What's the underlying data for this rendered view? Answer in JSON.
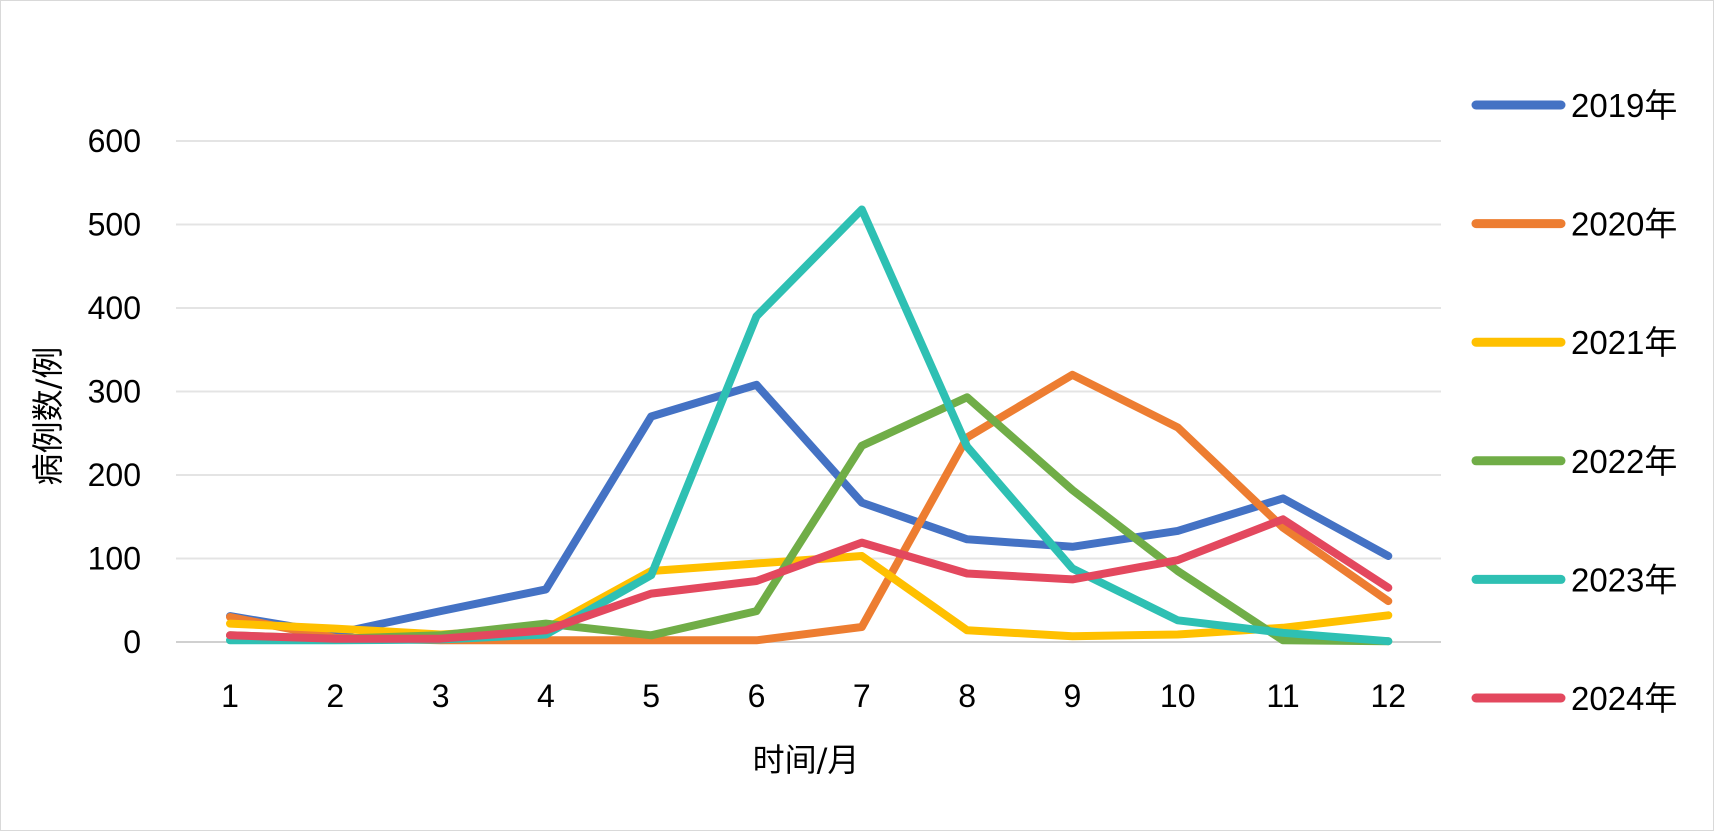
{
  "chart_data": {
    "type": "line",
    "title": "",
    "xlabel": "时间/月",
    "ylabel": "病例数/例",
    "categories": [
      "1",
      "2",
      "3",
      "4",
      "5",
      "6",
      "7",
      "8",
      "9",
      "10",
      "11",
      "12"
    ],
    "y_ticks": [
      0,
      100,
      200,
      300,
      400,
      500,
      600
    ],
    "ylim": [
      0,
      600
    ],
    "grid": true,
    "legend_position": "right",
    "series": [
      {
        "name": "2019年",
        "color": "#4472C4",
        "values": [
          31,
          10,
          37,
          63,
          270,
          308,
          167,
          123,
          114,
          133,
          172,
          103
        ]
      },
      {
        "name": "2020年",
        "color": "#ED7D31",
        "values": [
          30,
          5,
          2,
          2,
          2,
          2,
          18,
          245,
          320,
          257,
          137,
          49
        ]
      },
      {
        "name": "2021年",
        "color": "#FFC000",
        "values": [
          22,
          16,
          9,
          16,
          85,
          94,
          103,
          14,
          7,
          9,
          17,
          32
        ]
      },
      {
        "name": "2022年",
        "color": "#70AD47",
        "values": [
          8,
          4,
          8,
          22,
          8,
          37,
          235,
          293,
          182,
          85,
          2,
          1
        ]
      },
      {
        "name": "2023年",
        "color": "#2EC0B3",
        "values": [
          2,
          2,
          3,
          9,
          80,
          390,
          518,
          234,
          88,
          26,
          11,
          1
        ]
      },
      {
        "name": "2024年",
        "color": "#E3485E",
        "values": [
          8,
          4,
          4,
          14,
          58,
          73,
          119,
          82,
          75,
          98,
          147,
          65
        ]
      }
    ]
  }
}
